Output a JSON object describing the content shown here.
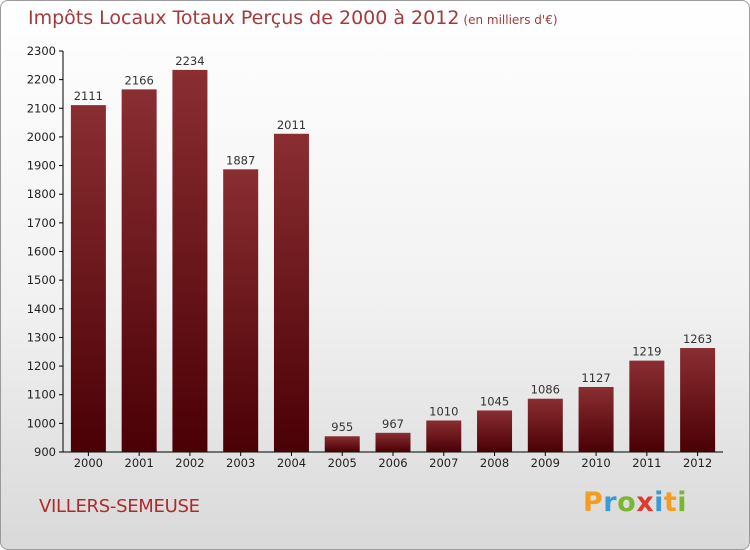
{
  "title": "Impôts Locaux Totaux Perçus de 2000 à 2012",
  "unit_note": "(en milliers d'€)",
  "city": "VILLERS-SEMEUSE",
  "logo_text": "Proxiti",
  "colors": {
    "bar_top": "#8a2e32",
    "bar_bottom": "#4a0005",
    "title": "#a53a3a",
    "city": "#b02a2a"
  },
  "chart_data": {
    "type": "bar",
    "title": "Impôts Locaux Totaux Perçus de 2000 à 2012",
    "xlabel": "",
    "ylabel": "",
    "categories": [
      "2000",
      "2001",
      "2002",
      "2003",
      "2004",
      "2005",
      "2006",
      "2007",
      "2008",
      "2009",
      "2010",
      "2011",
      "2012"
    ],
    "values": [
      2111,
      2166,
      2234,
      1887,
      2011,
      955,
      967,
      1010,
      1045,
      1086,
      1127,
      1219,
      1263
    ],
    "ylim": [
      900,
      2300
    ],
    "yticks": [
      900,
      1000,
      1100,
      1200,
      1300,
      1400,
      1500,
      1600,
      1700,
      1800,
      1900,
      2000,
      2100,
      2200,
      2300
    ],
    "grid": false
  }
}
